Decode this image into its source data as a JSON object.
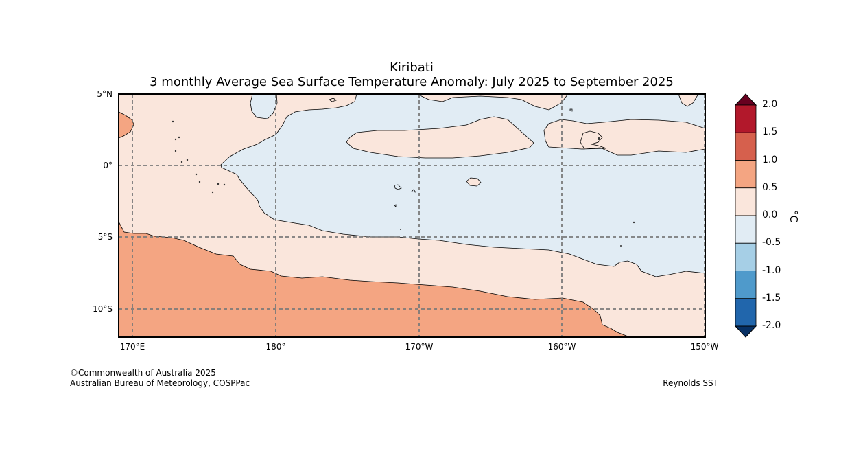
{
  "map": {
    "title": "Kiribati",
    "subtitle": "3 monthly Average Sea Surface Temperature Anomaly: July 2025 to September 2025",
    "lat_labels": [
      "5°N",
      "0°",
      "5°S",
      "10°S"
    ],
    "lon_labels": [
      "170°E",
      "180°",
      "170°W",
      "160°W",
      "150°W"
    ],
    "extent": {
      "lon_min": 169.1,
      "lon_max": 210.0,
      "lat_min": -12.0,
      "lat_max": 5.0
    }
  },
  "legend": {
    "unit": "°C",
    "tick_labels": [
      "2.0",
      "1.5",
      "1.0",
      "0.5",
      "0.0",
      "-0.5",
      "-1.0",
      "-1.5",
      "-2.0"
    ],
    "bins": [
      {
        "range": "> 2.0",
        "color": "#67001f"
      },
      {
        "range": "1.5 to 2.0",
        "color": "#b2182b"
      },
      {
        "range": "1.0 to 1.5",
        "color": "#d6604d"
      },
      {
        "range": "0.5 to 1.0",
        "color": "#f4a582"
      },
      {
        "range": "0.0 to 0.5",
        "color": "#fae6dc"
      },
      {
        "range": "-0.5 to 0.0",
        "color": "#e1ecf4"
      },
      {
        "range": "-1.0 to -0.5",
        "color": "#a6cfe6"
      },
      {
        "range": "-1.5 to -1.0",
        "color": "#4f9acb"
      },
      {
        "range": "-2.0 to -1.5",
        "color": "#2166ac"
      },
      {
        "range": "< -2.0",
        "color": "#073064"
      }
    ]
  },
  "credits": {
    "copyright": "©Commonwealth of Australia 2025",
    "agency": "Australian Bureau of Meteorology, COSPPac",
    "source": "Reynolds SST"
  }
}
